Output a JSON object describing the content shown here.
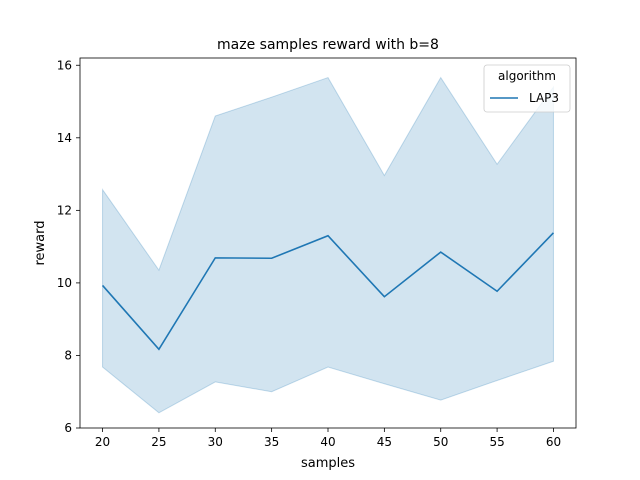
{
  "chart_data": {
    "type": "line",
    "title": "maze samples reward with b=8",
    "xlabel": "samples",
    "ylabel": "reward",
    "x": [
      20,
      25,
      30,
      35,
      40,
      45,
      50,
      55,
      60
    ],
    "xlim": [
      18,
      62
    ],
    "ylim": [
      6,
      16.2
    ],
    "xticks": [
      "20",
      "25",
      "30",
      "35",
      "40",
      "45",
      "50",
      "55",
      "60"
    ],
    "yticks": [
      "6",
      "8",
      "10",
      "12",
      "14",
      "16"
    ],
    "legend": {
      "title": "algorithm",
      "position": "top-right"
    },
    "grid": false,
    "series": [
      {
        "name": "LAP3",
        "color": "#1f77b4",
        "values": [
          9.93,
          8.17,
          10.69,
          10.68,
          11.3,
          9.62,
          10.85,
          9.77,
          11.38
        ],
        "band_upper": [
          12.57,
          10.35,
          14.6,
          15.12,
          15.66,
          12.96,
          15.66,
          13.27,
          15.4
        ],
        "band_lower": [
          7.68,
          6.42,
          7.27,
          7.0,
          7.68,
          7.22,
          6.77,
          7.31,
          7.84
        ],
        "band_color": "#1f77b4"
      }
    ]
  }
}
